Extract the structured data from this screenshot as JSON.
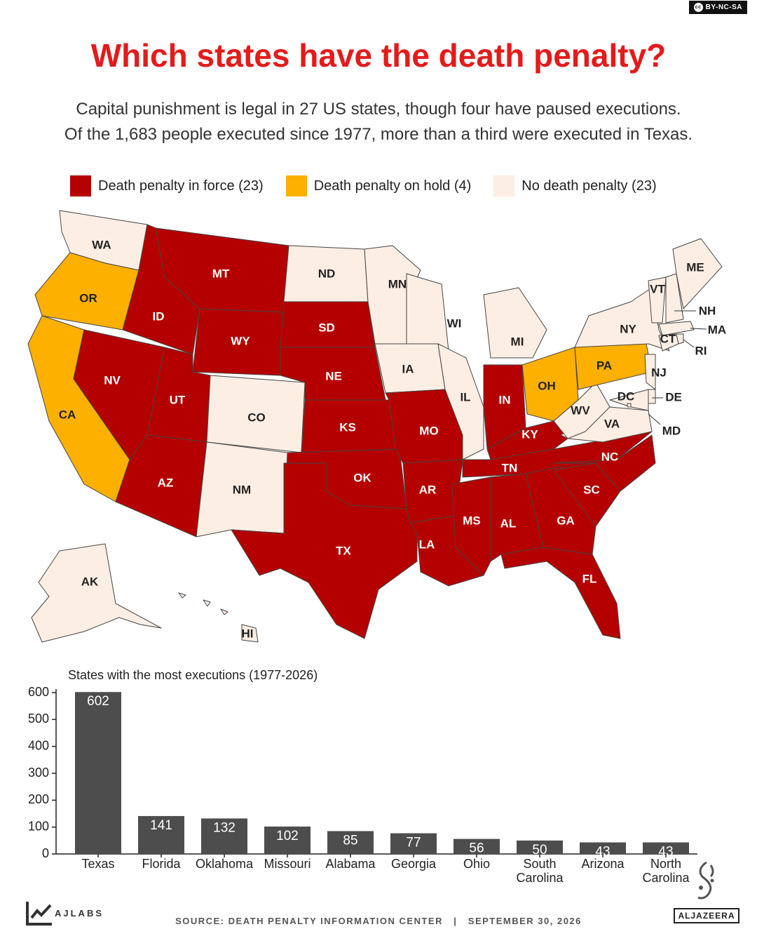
{
  "license": "BY-NC-SA",
  "title": "Which states have the death penalty?",
  "subtitle_lines": [
    "Capital punishment is legal in 27 US states, though four have paused executions.",
    "Of the 1,683 people executed since 1977,  more than a third were executed in Texas."
  ],
  "legend": [
    {
      "label": "Death penalty in force (23)",
      "color": "#b50000"
    },
    {
      "label": "Death penalty on hold (4)",
      "color": "#fdb000"
    },
    {
      "label": "No death penalty (23)",
      "color": "#fdeee4"
    }
  ],
  "colors": {
    "force": "#b50000",
    "hold": "#fdb000",
    "none": "#fdeee4",
    "bar": "#4d4d4d",
    "title": "#e41b1b"
  },
  "map_states": {
    "force": [
      "MT",
      "ID",
      "WY",
      "SD",
      "NE",
      "NV",
      "UT",
      "KS",
      "AZ",
      "OK",
      "TX",
      "MO",
      "AR",
      "LA",
      "IN",
      "KY",
      "TN",
      "MS",
      "AL",
      "GA",
      "SC",
      "NC",
      "FL"
    ],
    "hold": [
      "OR",
      "CA",
      "OH",
      "PA"
    ],
    "none": [
      "WA",
      "ND",
      "MN",
      "WI",
      "MI",
      "IA",
      "IL",
      "CO",
      "NM",
      "NY",
      "ME",
      "VT",
      "NH",
      "MA",
      "RI",
      "CT",
      "NJ",
      "DE",
      "MD",
      "DC",
      "VA",
      "WV",
      "AK",
      "HI"
    ]
  },
  "chart_data": {
    "type": "bar",
    "title": "States with the most executions (1977-2026)",
    "categories": [
      "Texas",
      "Florida",
      "Oklahoma",
      "Missouri",
      "Alabama",
      "Georgia",
      "Ohio",
      "South Carolina",
      "Arizona",
      "North Carolina"
    ],
    "values": [
      602,
      141,
      132,
      102,
      85,
      77,
      56,
      50,
      43,
      43
    ],
    "ylim": [
      0,
      600
    ],
    "yticks": [
      0,
      100,
      200,
      300,
      400,
      500,
      600
    ],
    "xlabel": "",
    "ylabel": "",
    "grid": false
  },
  "footer": {
    "brand": "AJLABS",
    "source": "SOURCE: DEATH PENALTY INFORMATION CENTER   |   SEPTEMBER 30, 2026",
    "logo": "ALJAZEERA"
  }
}
